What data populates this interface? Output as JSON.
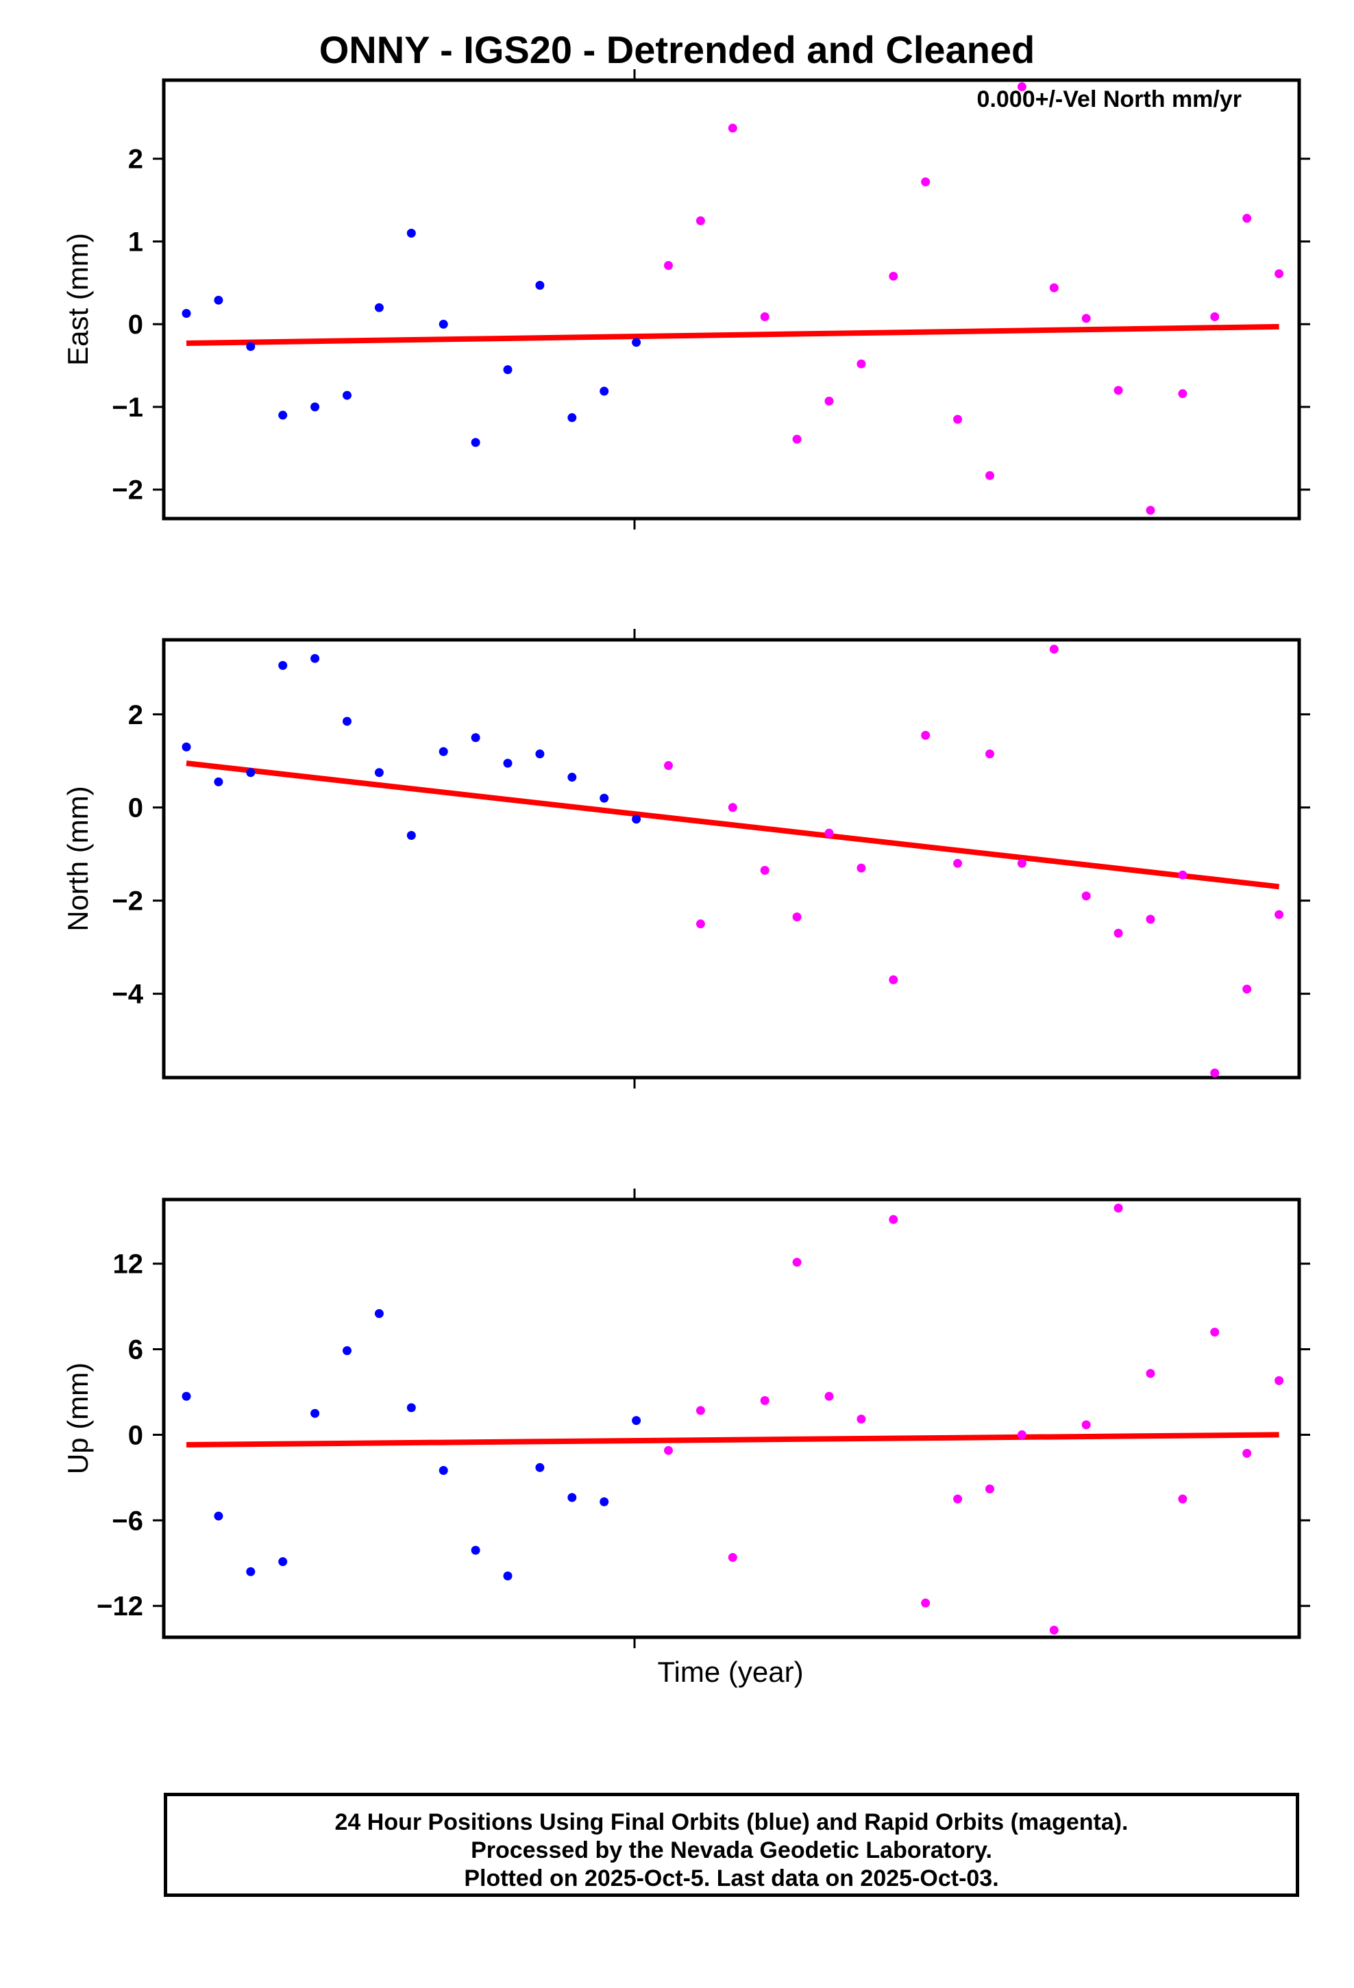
{
  "title": "ONNY - IGS20 - Detrended and Cleaned",
  "xlabel": "Time (year)",
  "footer": {
    "line1": "24 Hour Positions Using Final Orbits (blue) and Rapid Orbits (magenta).",
    "line2": "Processed by the Nevada Geodetic Laboratory.",
    "line3": "Plotted on 2025-Oct-5. Last data on 2025-Oct-03."
  },
  "colors": {
    "final": "#0000ff",
    "rapid": "#ff00ff",
    "trend": "#ff0000"
  },
  "chart_data": [
    {
      "type": "scatter",
      "name": "east",
      "ylabel": "East (mm)",
      "annotation": "0.000+/-Vel North mm/yr",
      "ylim": [
        -2.35,
        2.95
      ],
      "yticks": [
        -2,
        -1,
        0,
        1,
        2
      ],
      "x_count": 35,
      "final": [
        0.13,
        0.29,
        -0.27,
        -1.1,
        -1.0,
        -0.86,
        0.2,
        1.1,
        0.0,
        -1.43,
        -0.55,
        0.47,
        -1.13,
        -0.81,
        -0.22
      ],
      "rapid": [
        0.71,
        1.25,
        2.37,
        0.09,
        -1.39,
        -0.93,
        -0.48,
        0.58,
        1.72,
        -1.15,
        -1.83,
        2.87,
        0.44,
        0.07,
        -0.8,
        -2.25,
        -0.84,
        0.09,
        1.28,
        0.61
      ],
      "trend": [
        -0.23,
        -0.03
      ]
    },
    {
      "type": "scatter",
      "name": "north",
      "ylabel": "North (mm)",
      "ylim": [
        -5.8,
        3.6
      ],
      "yticks": [
        -4,
        -2,
        0,
        2
      ],
      "x_count": 35,
      "final": [
        1.3,
        0.55,
        0.75,
        3.05,
        3.2,
        1.85,
        0.75,
        -0.6,
        1.2,
        1.5,
        0.95,
        1.15,
        0.65,
        0.2,
        -0.25
      ],
      "rapid": [
        0.9,
        -2.5,
        0.0,
        -1.35,
        -2.35,
        -0.55,
        -1.3,
        -3.7,
        1.55,
        -1.2,
        1.15,
        -1.2,
        3.4,
        -1.9,
        -2.7,
        -2.4,
        -1.45,
        -5.7,
        -3.9,
        -2.3
      ],
      "trend": [
        0.95,
        -1.7
      ]
    },
    {
      "type": "scatter",
      "name": "up",
      "ylabel": "Up (mm)",
      "ylim": [
        -14.2,
        16.5
      ],
      "yticks": [
        -12,
        -6,
        0,
        6,
        12
      ],
      "x_count": 35,
      "final": [
        2.7,
        -5.7,
        -9.6,
        -8.9,
        1.5,
        5.9,
        8.5,
        1.9,
        -2.5,
        -8.1,
        -9.9,
        -2.3,
        -4.4,
        -4.7,
        1.0
      ],
      "rapid": [
        -1.1,
        1.7,
        -8.6,
        2.4,
        12.1,
        2.7,
        1.1,
        15.1,
        -11.8,
        -4.5,
        -3.8,
        0.0,
        -13.7,
        0.7,
        15.9,
        4.3,
        -4.5,
        7.2,
        -1.3,
        3.8
      ],
      "trend": [
        -0.7,
        0.0
      ]
    }
  ]
}
